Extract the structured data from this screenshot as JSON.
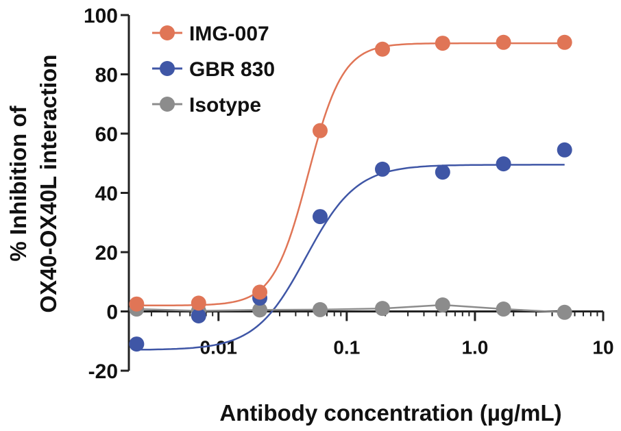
{
  "chart_data": {
    "type": "scatter",
    "title": "",
    "xlabel": "Antibody concentration (µg/mL)",
    "ylabel_line1": "% Inhibition of",
    "ylabel_line2": "OX40-OX40L interaction",
    "x_scale": "log",
    "xlim": [
      0.002,
      10
    ],
    "ylim": [
      -20,
      100
    ],
    "x_ticks": [
      {
        "value": 0.01,
        "label": "0.01"
      },
      {
        "value": 0.1,
        "label": "0.1"
      },
      {
        "value": 1,
        "label": "1.0"
      },
      {
        "value": 10,
        "label": "10"
      }
    ],
    "y_ticks": [
      {
        "value": -20,
        "label": "-20"
      },
      {
        "value": 0,
        "label": "0"
      },
      {
        "value": 20,
        "label": "20"
      },
      {
        "value": 40,
        "label": "40"
      },
      {
        "value": 60,
        "label": "60"
      },
      {
        "value": 80,
        "label": "80"
      },
      {
        "value": 100,
        "label": "100"
      }
    ],
    "zero_line": true,
    "grid": false,
    "legend_position": "top-left",
    "series": [
      {
        "name": "IMG-007",
        "color": "#e07556",
        "x": [
          0.0023,
          0.007,
          0.021,
          0.062,
          0.19,
          0.56,
          1.67,
          5.0
        ],
        "y": [
          2.5,
          2.8,
          6.5,
          61,
          88.5,
          90.5,
          90.8,
          90.8
        ],
        "fit": {
          "bottom": 2.0,
          "top": 90.5,
          "ec50": 0.05,
          "hill": 3.2
        }
      },
      {
        "name": "GBR 830",
        "color": "#3f56a6",
        "x": [
          0.0023,
          0.007,
          0.021,
          0.062,
          0.19,
          0.56,
          1.67,
          5.0
        ],
        "y": [
          -11,
          -1.5,
          4.5,
          32,
          48,
          47,
          49.8,
          54.5
        ],
        "fit": {
          "bottom": -13,
          "top": 49.5,
          "ec50": 0.048,
          "hill": 2.2
        }
      },
      {
        "name": "Isotype",
        "color": "#8c8c8c",
        "x": [
          0.0023,
          0.007,
          0.021,
          0.062,
          0.19,
          0.56,
          1.67,
          5.0
        ],
        "y": [
          0.8,
          0.2,
          0.5,
          0.6,
          1.0,
          2.2,
          0.8,
          -0.3
        ],
        "fit": null
      }
    ]
  }
}
